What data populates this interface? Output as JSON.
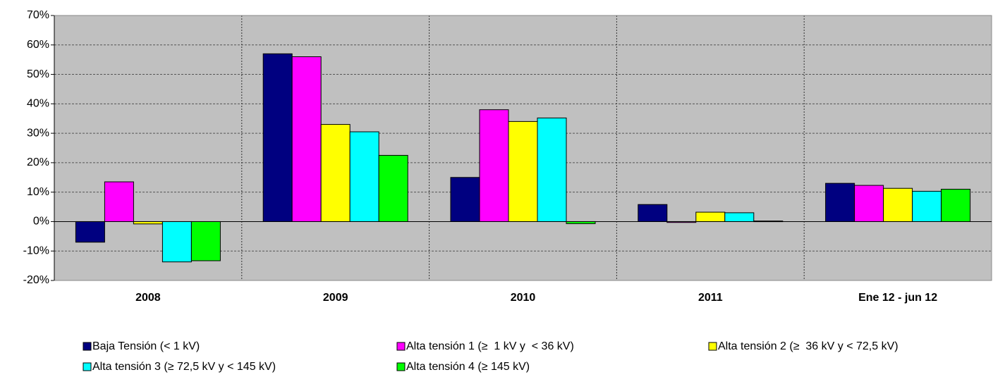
{
  "chart_data": {
    "type": "bar",
    "categories": [
      "2008",
      "2009",
      "2010",
      "2011",
      "Ene 12 - jun 12"
    ],
    "series": [
      {
        "name": "Baja Tensión (< 1 kV)",
        "color": "#000080",
        "values": [
          -7,
          57,
          15,
          5.8,
          13
        ]
      },
      {
        "name": "Alta tensión 1 (≥  1 kV y  < 36 kV)",
        "color": "#ff00ff",
        "values": [
          13.5,
          56,
          38,
          -0.3,
          12.3
        ]
      },
      {
        "name": "Alta tensión 2 (≥  36 kV y < 72,5 kV)",
        "color": "#ffff00",
        "values": [
          -0.8,
          33,
          34,
          3.2,
          11.3
        ]
      },
      {
        "name": "Alta tensión 3 (≥ 72,5 kV y < 145 kV)",
        "color": "#00ffff",
        "values": [
          -13.7,
          30.5,
          35.2,
          3,
          10.3
        ]
      },
      {
        "name": "Alta tensión 4 (≥ 145 kV)",
        "color": "#00ff00",
        "values": [
          -13.3,
          22.5,
          -0.7,
          0.2,
          11
        ]
      }
    ],
    "ylim": [
      -20,
      70
    ],
    "yticks": [
      {
        "value": -20,
        "label": "-20%"
      },
      {
        "value": -10,
        "label": "-10%"
      },
      {
        "value": 0,
        "label": "0%"
      },
      {
        "value": 10,
        "label": "10%"
      },
      {
        "value": 20,
        "label": "20%"
      },
      {
        "value": 30,
        "label": "30%"
      },
      {
        "value": 40,
        "label": "40%"
      },
      {
        "value": 50,
        "label": "50%"
      },
      {
        "value": 60,
        "label": "60%"
      },
      {
        "value": 70,
        "label": "70%"
      }
    ],
    "grid": true,
    "legend": "bottom"
  }
}
